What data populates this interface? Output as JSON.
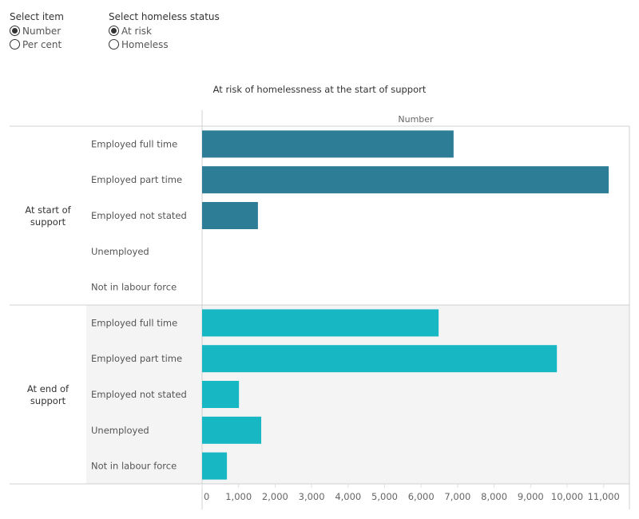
{
  "controls": {
    "item": {
      "title": "Select item",
      "options": [
        "Number",
        "Per cent"
      ],
      "selected": "Number"
    },
    "status": {
      "title": "Select homeless status",
      "options": [
        "At risk",
        "Homeless"
      ],
      "selected": "At risk"
    }
  },
  "chart_data": {
    "type": "bar",
    "title": "At risk of homelessness at the start of support",
    "xlabel": "Number",
    "xlim": [
      0,
      11000
    ],
    "xticks": [
      0,
      1000,
      2000,
      3000,
      4000,
      5000,
      6000,
      7000,
      8000,
      9000,
      10000,
      11000
    ],
    "xtick_labels": [
      "0",
      "1,000",
      "2,000",
      "3,000",
      "4,000",
      "5,000",
      "6,000",
      "7,000",
      "8,000",
      "9,000",
      "10,000",
      "11,000"
    ],
    "categories": [
      "Employed full time",
      "Employed part time",
      "Employed not stated",
      "Unemployed",
      "Not in labour force"
    ],
    "groups": [
      {
        "name": "At start of support",
        "color": "#2e7d96",
        "values": [
          6890,
          11140,
          1530,
          0,
          0
        ]
      },
      {
        "name": "At end of support",
        "color": "#17b8c4",
        "values": [
          6480,
          9720,
          1010,
          1620,
          680
        ]
      }
    ],
    "grid": false
  }
}
